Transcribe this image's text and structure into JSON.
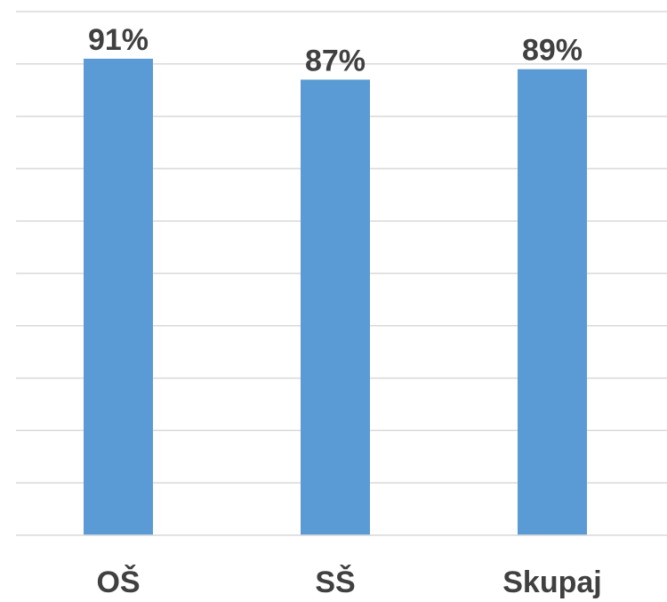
{
  "chart_data": {
    "type": "bar",
    "categories": [
      "OŠ",
      "SŠ",
      "Skupaj"
    ],
    "values": [
      91,
      87,
      89
    ],
    "data_labels": [
      "91%",
      "87%",
      "89%"
    ],
    "ylim": [
      0,
      100
    ],
    "grid": true,
    "gridline_step": 10,
    "title": "",
    "xlabel": "",
    "ylabel": "",
    "bar_color": "#5b9bd5",
    "label_color": "#404040",
    "grid_color": "#d9d9d9"
  }
}
